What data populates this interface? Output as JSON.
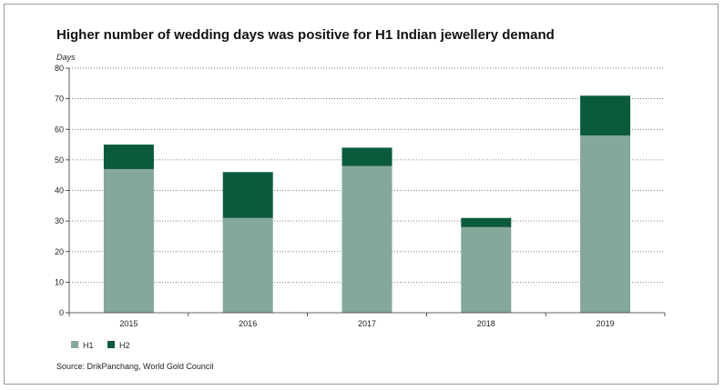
{
  "chart_data": {
    "type": "bar",
    "stacked": true,
    "title": "Higher number of wedding days was positive for H1 Indian jewellery demand",
    "ylabel": "Days",
    "xlabel": "",
    "categories": [
      "2015",
      "2016",
      "2017",
      "2018",
      "2019"
    ],
    "series": [
      {
        "name": "H1",
        "values": [
          47,
          31,
          48,
          28,
          58
        ],
        "color": "#84a89a"
      },
      {
        "name": "H2",
        "values": [
          8,
          15,
          6,
          3,
          13
        ],
        "color": "#0a5a3c"
      }
    ],
    "ylim": [
      0,
      80
    ],
    "yticks": [
      0,
      10,
      20,
      30,
      40,
      50,
      60,
      70,
      80
    ],
    "grid": true,
    "legend": "bottom-left",
    "source": "Source: DrikPanchang, World Gold Council"
  }
}
